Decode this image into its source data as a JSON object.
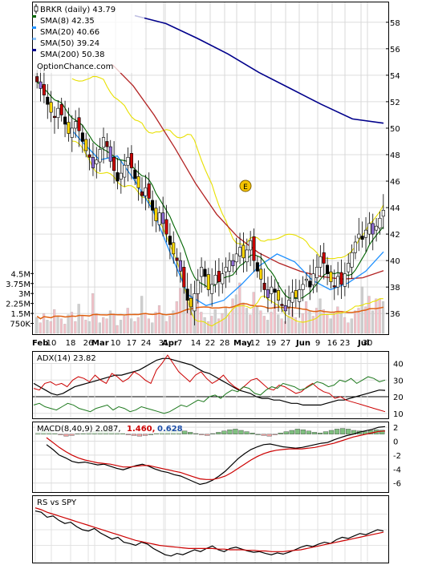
{
  "chart_data": [
    {
      "type": "candlestick",
      "panel": "price",
      "title": "BRKR (daily) 43.79",
      "watermark": "OptionChance.com",
      "x_month_labels": [
        "Feb",
        "Mar",
        "Apr",
        "May",
        "Jun",
        "Jul"
      ],
      "x_day_labels": [
        "10",
        "18",
        "26",
        "10",
        "17",
        "24",
        "31",
        "7",
        "14",
        "22",
        "28",
        "12",
        "19",
        "27",
        "9",
        "16",
        "23",
        "30"
      ],
      "y_ticks": [
        36,
        38,
        40,
        42,
        44,
        46,
        48,
        50,
        52,
        54,
        56,
        58
      ],
      "ylim": [
        34.5,
        59.5
      ],
      "legend": [
        {
          "label": "SMA(8) 42.35",
          "color": "#006400"
        },
        {
          "label": "SMA(20) 40.66",
          "color": "#1e90ff"
        },
        {
          "label": "SMA(50) 39.24",
          "color": "#b22222"
        },
        {
          "label": "SMA(200) 50.38",
          "color": "#00008b"
        }
      ],
      "close_series": [
        53.5,
        53.0,
        52.5,
        51.8,
        51.2,
        50.8,
        51.5,
        51.0,
        50.3,
        49.6,
        50.0,
        50.5,
        49.8,
        49.0,
        48.3,
        47.8,
        47.0,
        47.6,
        48.4,
        49.3,
        48.6,
        47.5,
        46.8,
        46.0,
        46.6,
        47.2,
        47.8,
        47.0,
        46.2,
        45.5,
        44.9,
        45.5,
        44.7,
        43.8,
        43.0,
        43.6,
        42.8,
        42.0,
        41.2,
        40.5,
        40.0,
        39.2,
        38.0,
        37.0,
        36.5,
        37.5,
        38.5,
        39.5,
        38.8,
        37.8,
        38.2,
        38.9,
        38.4,
        39.0,
        39.5,
        40.0,
        39.6,
        40.5,
        41.0,
        40.2,
        40.8,
        41.5,
        40.0,
        39.2,
        38.6,
        37.8,
        37.2,
        38.0,
        37.6,
        37.0,
        36.6,
        36.2,
        37.0,
        37.6,
        37.2,
        37.8,
        38.2,
        38.6,
        38.0,
        39.0,
        39.5,
        40.3,
        39.8,
        39.0,
        38.4,
        38.0,
        38.8,
        38.2,
        39.0,
        39.8,
        40.6,
        41.4,
        42.0,
        41.6,
        42.3,
        42.8,
        42.0,
        42.6,
        43.2,
        43.8
      ],
      "sma200": [
        58.5,
        57.9,
        56.8,
        55.6,
        54.2,
        53.0,
        51.8,
        50.7,
        50.38
      ],
      "sma50": [
        54.8,
        53.2,
        51.0,
        48.5,
        45.8,
        43.5,
        41.8,
        40.6,
        39.8,
        39.2,
        38.8,
        38.6,
        38.7,
        39.24
      ],
      "sma20": [
        50.5,
        49.0,
        47.6,
        47.9,
        46.0,
        43.8,
        40.5,
        37.4,
        36.6,
        37.0,
        38.2,
        39.6,
        40.5,
        39.9,
        38.5,
        37.8,
        38.3,
        39.2,
        40.66
      ],
      "volume_ticks": [
        "4.5M",
        "3.75M",
        "3M",
        "2.25M",
        "1.5M",
        "750K"
      ],
      "volume_values_m": [
        1.2,
        0.8,
        1.5,
        1.0,
        0.9,
        1.8,
        1.3,
        1.1,
        0.7,
        1.4,
        1.6,
        0.9,
        2.2,
        1.3,
        1.0,
        0.9,
        3.0,
        1.5,
        0.8,
        1.2,
        1.1,
        1.7,
        1.4,
        0.6,
        1.0,
        1.3,
        1.9,
        1.1,
        0.9,
        1.2,
        2.8,
        1.5,
        1.1,
        0.8,
        1.6,
        2.1,
        1.4,
        0.9,
        1.3,
        1.7,
        2.4,
        3.4,
        3.9,
        2.6,
        1.8,
        2.2,
        3.2,
        1.6,
        1.2,
        0.9,
        1.3,
        1.8,
        1.1,
        1.5,
        2.0,
        1.4,
        2.6,
        2.9,
        3.8,
        2.3,
        1.9,
        1.4,
        3.1,
        2.0,
        1.7,
        1.3,
        1.0,
        1.6,
        2.2,
        1.4,
        1.1,
        0.9,
        1.3,
        1.8,
        1.2,
        0.8,
        1.5,
        2.4,
        1.7,
        1.3,
        1.9,
        2.6,
        1.8,
        1.4,
        1.1,
        1.6,
        2.0,
        1.5,
        1.2,
        0.8,
        1.1,
        1.7,
        1.9,
        3.5,
        2.0,
        2.8,
        1.7,
        2.6,
        2.6,
        2.4
      ]
    },
    {
      "type": "line",
      "panel": "adx",
      "title": "ADX(14) 23.82",
      "y_ticks": [
        10,
        20,
        30,
        40
      ],
      "ylim": [
        7,
        47
      ],
      "series": [
        {
          "color": "#000000",
          "values": [
            28,
            26,
            24,
            22,
            21,
            22,
            24,
            26,
            27,
            28,
            29,
            30,
            31,
            32,
            33,
            33,
            34,
            35,
            36,
            38,
            40,
            42,
            43,
            43,
            42,
            41,
            40,
            39,
            37,
            35,
            34,
            32,
            30,
            28,
            26,
            24,
            23,
            22,
            20,
            19,
            19,
            18,
            18,
            17,
            16,
            16,
            15,
            15,
            15,
            15,
            16,
            17,
            18,
            18,
            19,
            20,
            21,
            22,
            23,
            24,
            23.8
          ]
        },
        {
          "color": "#cc0000",
          "values": [
            25,
            24,
            28,
            29,
            27,
            28,
            26,
            30,
            32,
            31,
            29,
            33,
            30,
            28,
            34,
            32,
            29,
            31,
            35,
            33,
            30,
            28,
            36,
            40,
            45,
            40,
            35,
            32,
            29,
            33,
            35,
            31,
            28,
            30,
            33,
            29,
            26,
            24,
            27,
            30,
            31,
            28,
            25,
            24,
            27,
            26,
            24,
            22,
            23,
            26,
            28,
            25,
            23,
            22,
            19,
            20,
            18,
            17,
            16,
            15,
            14,
            13,
            12,
            11
          ]
        },
        {
          "color": "#1f7a1f",
          "values": [
            15,
            16,
            14,
            13,
            12,
            14,
            16,
            15,
            13,
            12,
            11,
            13,
            14,
            15,
            12,
            14,
            13,
            11,
            12,
            14,
            13,
            12,
            11,
            10,
            11,
            13,
            15,
            14,
            16,
            18,
            17,
            20,
            21,
            19,
            22,
            24,
            23,
            26,
            25,
            22,
            21,
            24,
            26,
            25,
            28,
            27,
            26,
            24,
            25,
            27,
            29,
            28,
            26,
            27,
            30,
            29,
            31,
            28,
            30,
            32,
            31,
            29,
            30
          ]
        }
      ]
    },
    {
      "type": "line",
      "panel": "macd",
      "title": "MACD(8,40,9) 2.087,",
      "extra_values": [
        {
          "text": "1.460,",
          "color": "#cc0000"
        },
        {
          "text": "0.628",
          "color": "#1f4fa8"
        }
      ],
      "y_ticks": [
        2,
        0,
        -2,
        -4,
        -6
      ],
      "ylim": [
        -7.3,
        2.7
      ],
      "series": [
        {
          "color": "#000000",
          "values": [
            -0.5,
            -1.2,
            -2.0,
            -2.4,
            -2.9,
            -3.1,
            -3.0,
            -3.2,
            -3.4,
            -3.3,
            -3.6,
            -3.9,
            -4.1,
            -3.8,
            -3.5,
            -3.3,
            -3.6,
            -4.0,
            -4.3,
            -4.5,
            -4.8,
            -5.0,
            -5.4,
            -5.8,
            -6.2,
            -6.0,
            -5.6,
            -5.0,
            -4.3,
            -3.4,
            -2.5,
            -1.8,
            -1.2,
            -0.8,
            -0.5,
            -0.4,
            -0.6,
            -0.8,
            -0.9,
            -1.0,
            -0.9,
            -0.7,
            -0.5,
            -0.3,
            -0.2,
            0.2,
            0.5,
            0.8,
            1.0,
            1.3,
            1.5,
            1.7,
            2.0,
            2.09
          ]
        },
        {
          "color": "#cc0000",
          "values": [
            0.5,
            -0.2,
            -0.9,
            -1.5,
            -2.0,
            -2.4,
            -2.7,
            -2.9,
            -3.1,
            -3.2,
            -3.3,
            -3.5,
            -3.7,
            -3.7,
            -3.6,
            -3.5,
            -3.5,
            -3.7,
            -3.9,
            -4.1,
            -4.3,
            -4.5,
            -4.8,
            -5.1,
            -5.4,
            -5.5,
            -5.5,
            -5.3,
            -5.0,
            -4.5,
            -3.9,
            -3.3,
            -2.7,
            -2.2,
            -1.8,
            -1.5,
            -1.3,
            -1.2,
            -1.1,
            -1.1,
            -1.1,
            -1.0,
            -0.9,
            -0.7,
            -0.5,
            -0.3,
            0.0,
            0.3,
            0.6,
            0.8,
            1.0,
            1.2,
            1.4,
            1.46
          ]
        }
      ],
      "histogram": [
        0.3,
        0.5,
        0.4,
        0.2,
        -0.1,
        -0.3,
        -0.2,
        0.1,
        0.2,
        0.3,
        0.4,
        0.5,
        0.6,
        0.4,
        0.3,
        0.2,
        -0.1,
        -0.2,
        -0.3,
        -0.2,
        0.0,
        0.2,
        0.4,
        0.6,
        0.8,
        0.7,
        0.5,
        0.3,
        0.1,
        -0.1,
        -0.2,
        0.1,
        0.3,
        0.5,
        0.7,
        0.8,
        0.6,
        0.4,
        0.2,
        0.0,
        -0.2,
        -0.3,
        -0.1,
        0.2,
        0.4,
        0.6,
        0.8,
        0.7,
        0.5,
        0.3,
        0.2,
        0.4,
        0.6,
        0.8,
        0.9,
        0.8,
        0.6,
        0.5,
        0.4,
        0.6,
        0.7,
        0.63
      ]
    },
    {
      "type": "line",
      "panel": "rs",
      "title": "RS vs SPY",
      "series": [
        {
          "color": "#000000",
          "values": [
            80,
            78,
            70,
            72,
            65,
            60,
            62,
            55,
            50,
            48,
            52,
            45,
            40,
            35,
            38,
            30,
            28,
            25,
            30,
            27,
            20,
            15,
            10,
            8,
            12,
            10,
            14,
            18,
            15,
            20,
            24,
            18,
            15,
            20,
            22,
            19,
            16,
            14,
            15,
            12,
            10,
            13,
            11,
            14,
            18,
            22,
            25,
            23,
            27,
            30,
            28,
            34,
            38,
            36,
            40,
            44,
            42,
            46,
            50,
            48
          ]
        },
        {
          "color": "#cc0000",
          "values": [
            85,
            82,
            78,
            75,
            72,
            69,
            66,
            63,
            60,
            57,
            54,
            51,
            48,
            45,
            42,
            39,
            36,
            33,
            31,
            29,
            27,
            25,
            24,
            23,
            22,
            21,
            20,
            20,
            20,
            20,
            20,
            19,
            19,
            18,
            18,
            18,
            17,
            17,
            16,
            16,
            15,
            15,
            15,
            16,
            17,
            18,
            20,
            22,
            24,
            26,
            28,
            30,
            32,
            34,
            36,
            38,
            40,
            42,
            44,
            46
          ]
        }
      ]
    }
  ]
}
